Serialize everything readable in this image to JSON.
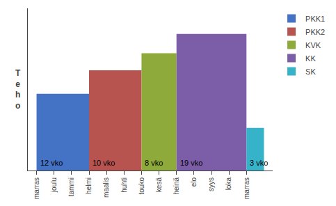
{
  "chart_data": {
    "type": "bar",
    "ylabel": "T\ne\nh\no",
    "categories": [
      "marras",
      "joulu",
      "tammi",
      "helmi",
      "maalis",
      "huhti",
      "touko",
      "kesä",
      "heinä",
      "elo",
      "syys",
      "loka",
      "marras"
    ],
    "series": [
      {
        "name": "PKK1",
        "color": "#4472C4",
        "x": [
          0
        ],
        "width": [
          3
        ],
        "values": [
          1.8
        ],
        "annotation": "12 vko"
      },
      {
        "name": "PKK2",
        "color": "#B85450",
        "x": [
          3
        ],
        "width": [
          3
        ],
        "values": [
          2.35
        ],
        "annotation": "10 vko"
      },
      {
        "name": "KVK",
        "color": "#8EAA3B",
        "x": [
          6
        ],
        "width": [
          2
        ],
        "values": [
          2.75
        ],
        "annotation": "8 vko"
      },
      {
        "name": "KK",
        "color": "#7B5EA7",
        "x": [
          8
        ],
        "width": [
          4
        ],
        "values": [
          3.2
        ],
        "annotation": "19 vko"
      },
      {
        "name": "SK",
        "color": "#36B3C9",
        "x": [
          12
        ],
        "width": [
          1
        ],
        "values": [
          1.0
        ],
        "annotation": "3 vko"
      }
    ],
    "xlim": [
      -0.5,
      13.5
    ],
    "ylim": [
      0,
      3.8
    ],
    "yticks": [],
    "tick_labels": "x",
    "grid": false,
    "legend": "right"
  }
}
